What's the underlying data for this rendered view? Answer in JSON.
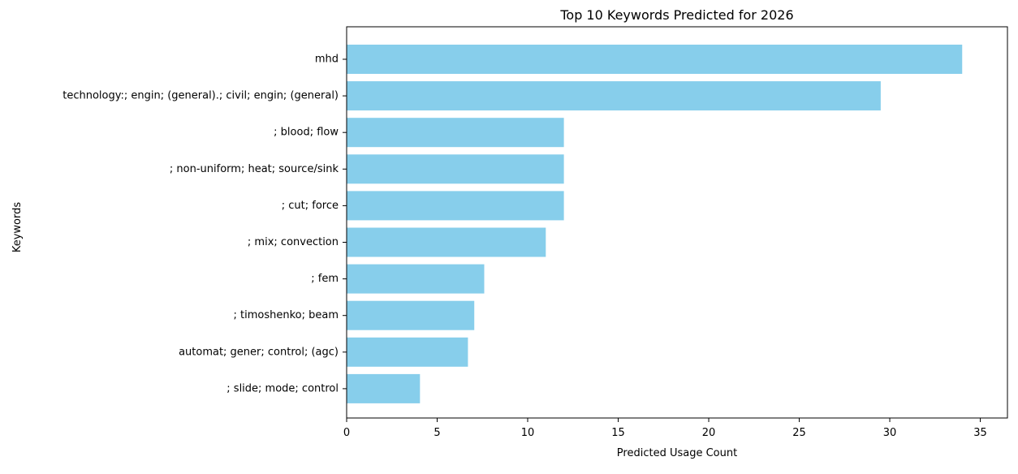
{
  "chart_data": {
    "type": "bar",
    "orientation": "horizontal",
    "title": "Top 10 Keywords Predicted for 2026",
    "xlabel": "Predicted Usage Count",
    "ylabel": "Keywords",
    "xlim": [
      0,
      36.5
    ],
    "x_ticks": [
      0,
      5,
      10,
      15,
      20,
      25,
      30,
      35
    ],
    "grid": false,
    "bar_color": "#87CEEB",
    "categories": [
      "mhd",
      "technology:; engin; (general).; civil; engin; (general)",
      "; blood; flow",
      "; non-uniform; heat; source/sink",
      "; cut; force",
      "; mix; convection",
      "; fem",
      "; timoshenko; beam",
      "automat; gener; control; (agc)",
      "; slide; mode; control"
    ],
    "values": [
      34,
      29.5,
      12,
      12,
      12,
      11,
      7.6,
      7.05,
      6.7,
      4.05
    ]
  }
}
